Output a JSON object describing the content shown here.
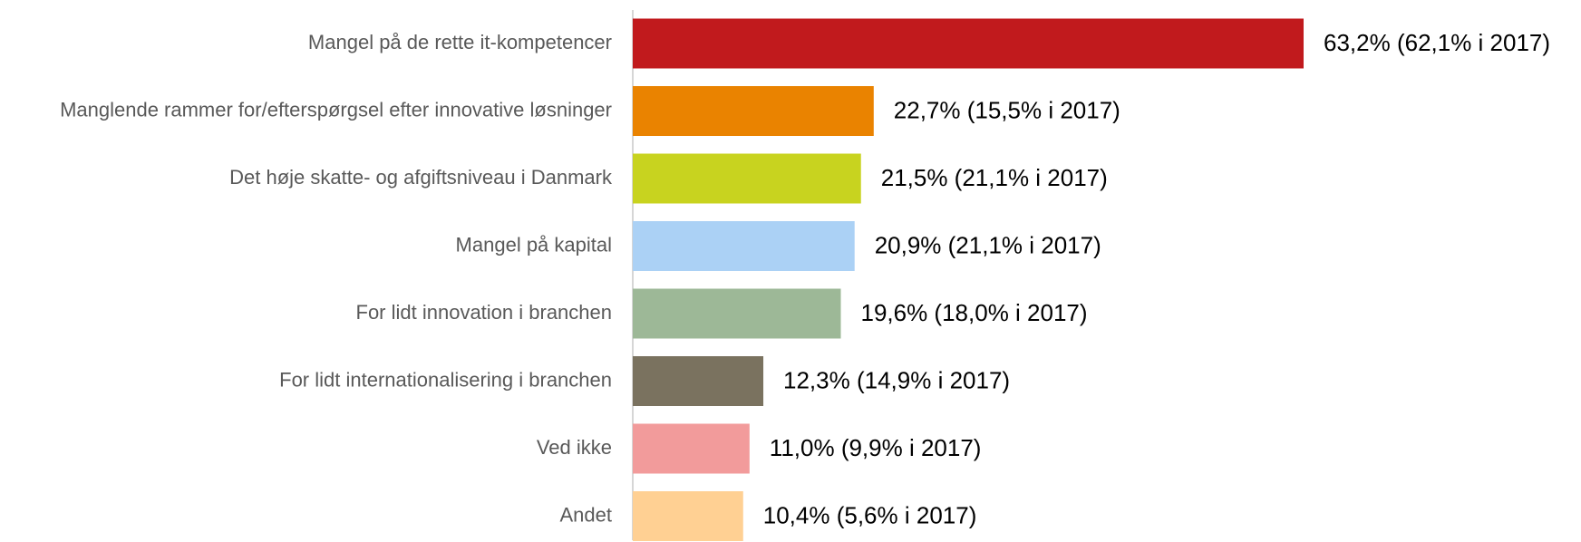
{
  "chart_data": {
    "type": "bar",
    "orientation": "horizontal",
    "categories": [
      "Mangel på de rette it-kompetencer",
      "Manglende rammer for/efterspørgsel efter innovative løsninger",
      "Det høje skatte- og afgiftsniveau i Danmark",
      "Mangel på kapital",
      "For lidt innovation i branchen",
      "For lidt internationalisering i branchen",
      "Ved ikke",
      "Andet"
    ],
    "values": [
      63.2,
      22.7,
      21.5,
      20.9,
      19.6,
      12.3,
      11.0,
      10.4
    ],
    "value_labels": [
      "63,2% (62,1% i 2017)",
      "22,7% (15,5% i 2017)",
      "21,5% (21,1% i 2017)",
      "20,9% (21,1% i 2017)",
      "19,6% (18,0% i 2017)",
      "12,3% (14,9% i 2017)",
      "11,0% (9,9% i 2017)",
      "10,4% (5,6% i 2017)"
    ],
    "colors": [
      "#c11a1d",
      "#ea8300",
      "#c8d31f",
      "#abd1f5",
      "#9db897",
      "#7a725f",
      "#f29b9b",
      "#ffd093"
    ]
  }
}
